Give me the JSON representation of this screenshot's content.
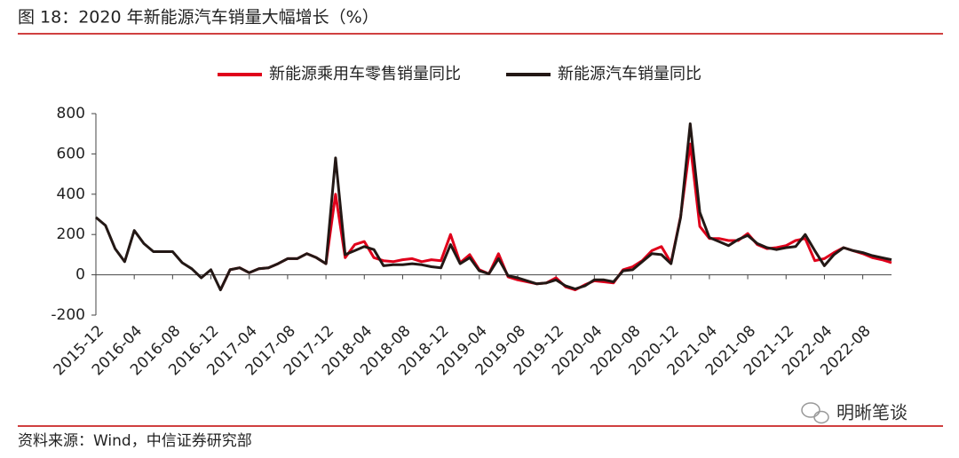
{
  "title": "图 18：2020 年新能源汽车销量大幅增长（%）",
  "source": "资料来源：Wind，中信证券研究部",
  "watermark": "明晰笔谈",
  "chart_data": {
    "type": "line",
    "categories": [
      "2015-12",
      null,
      null,
      null,
      "2016-04",
      null,
      null,
      null,
      "2016-08",
      null,
      null,
      null,
      "2016-12",
      null,
      null,
      null,
      "2017-04",
      null,
      null,
      null,
      "2017-08",
      null,
      null,
      null,
      "2017-12",
      null,
      null,
      null,
      "2018-04",
      null,
      null,
      null,
      "2018-08",
      null,
      null,
      null,
      "2018-12",
      null,
      null,
      null,
      "2019-04",
      null,
      null,
      null,
      "2019-08",
      null,
      null,
      null,
      "2019-12",
      null,
      null,
      null,
      "2020-04",
      null,
      null,
      null,
      "2020-08",
      null,
      null,
      null,
      "2020-12",
      null,
      null,
      null,
      "2021-04",
      null,
      null,
      null,
      "2021-08",
      null,
      null,
      null,
      "2021-12",
      null,
      null,
      null,
      "2022-04",
      null,
      null,
      null,
      "2022-08",
      null,
      null,
      null
    ],
    "series": [
      {
        "name": "新能源乘用车零售销量同比",
        "color": "#e0001b",
        "values": [
          null,
          null,
          null,
          null,
          null,
          null,
          null,
          null,
          null,
          null,
          null,
          null,
          null,
          -75,
          25,
          35,
          10,
          30,
          35,
          55,
          80,
          80,
          105,
          85,
          55,
          400,
          85,
          150,
          165,
          85,
          70,
          65,
          75,
          80,
          65,
          75,
          70,
          200,
          60,
          100,
          25,
          5,
          105,
          -10,
          -25,
          -35,
          -45,
          -40,
          -15,
          -60,
          -75,
          -50,
          -30,
          -35,
          -40,
          25,
          40,
          70,
          120,
          140,
          60,
          290,
          650,
          240,
          180,
          180,
          170,
          170,
          205,
          150,
          130,
          135,
          145,
          170,
          180,
          70,
          80,
          110,
          135,
          120,
          105,
          85,
          75,
          60
        ]
      },
      {
        "name": "新能源汽车销量同比",
        "color": "#231815",
        "values": [
          285,
          245,
          130,
          65,
          220,
          155,
          115,
          115,
          115,
          60,
          30,
          -15,
          25,
          -75,
          25,
          35,
          10,
          30,
          35,
          55,
          80,
          80,
          105,
          85,
          55,
          580,
          100,
          120,
          140,
          125,
          45,
          50,
          50,
          55,
          50,
          40,
          35,
          150,
          55,
          85,
          20,
          5,
          80,
          -5,
          -15,
          -30,
          -45,
          -40,
          -25,
          -55,
          -70,
          -55,
          -25,
          -25,
          -35,
          20,
          25,
          65,
          105,
          100,
          55,
          285,
          750,
          310,
          185,
          165,
          145,
          175,
          195,
          155,
          135,
          125,
          135,
          140,
          200,
          120,
          45,
          100,
          135,
          120,
          110,
          95,
          85,
          75
        ]
      }
    ],
    "ylim": [
      -200,
      800
    ],
    "yticks": [
      -200,
      0,
      200,
      400,
      600,
      800
    ]
  }
}
